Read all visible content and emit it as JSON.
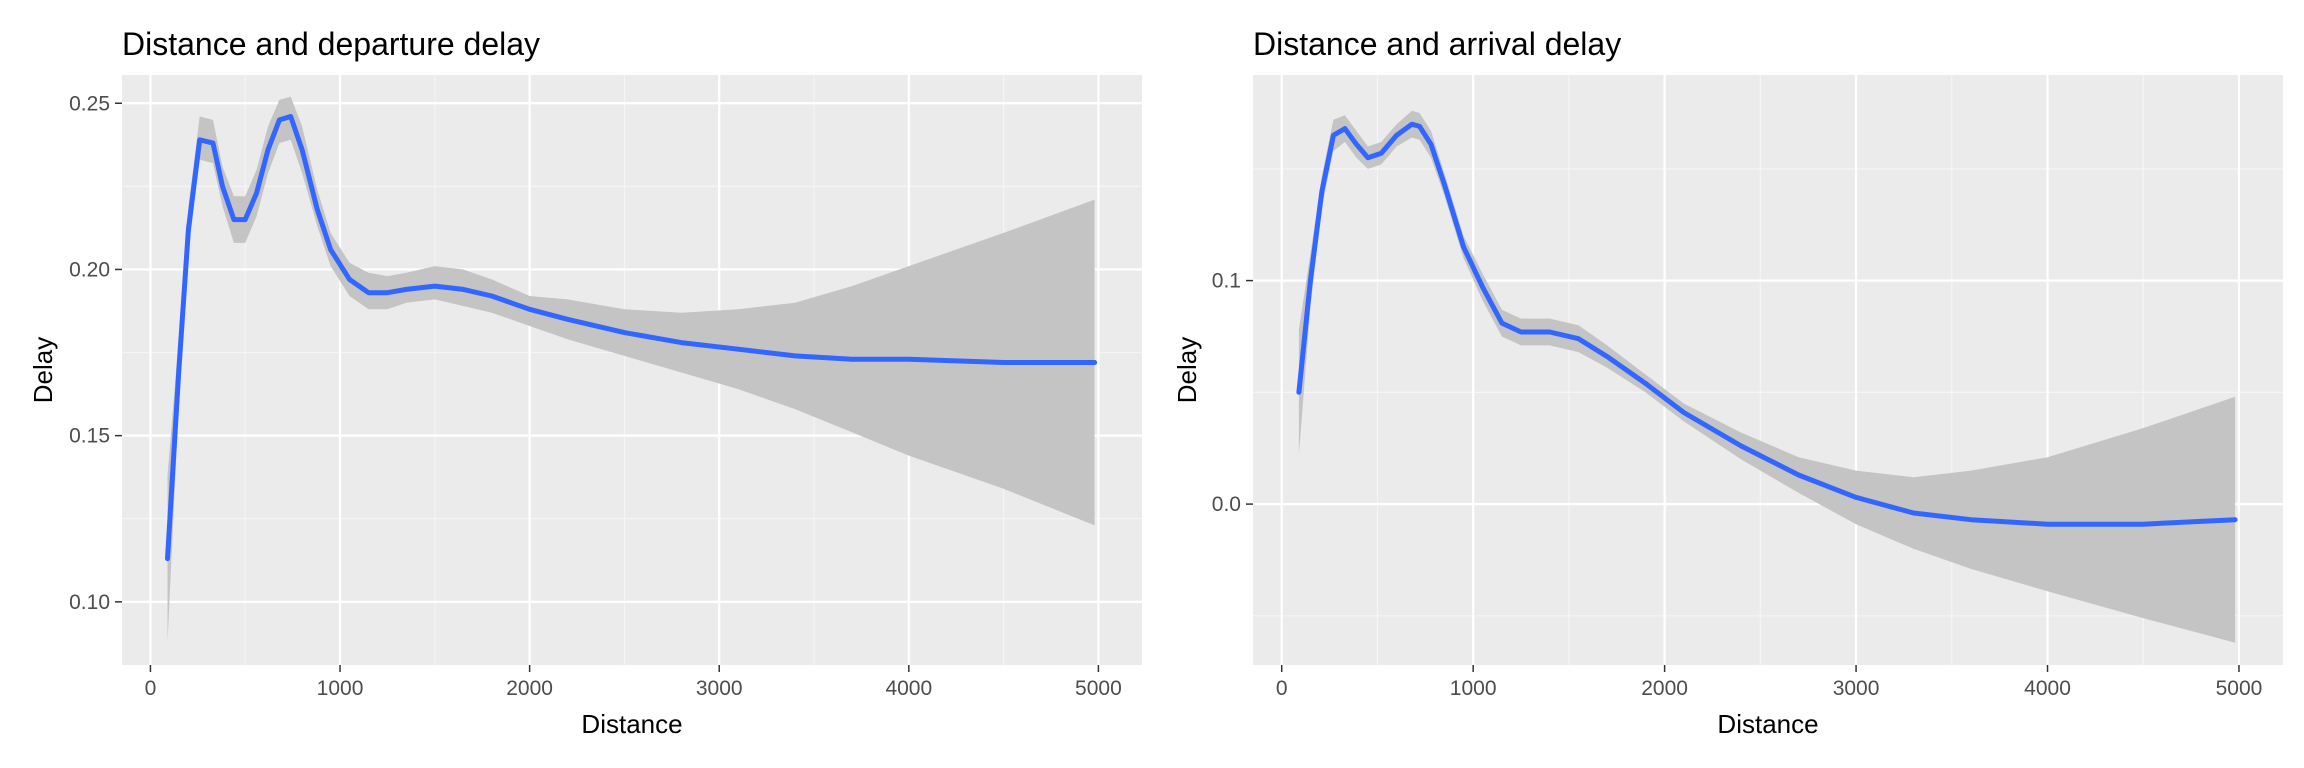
{
  "colors": {
    "panel_background": "#ebebeb",
    "grid_major": "#ffffff",
    "grid_minor": "#f5f5f5",
    "line": "#3366ff",
    "ribbon": "#c4c4c4",
    "tick_text": "#4d4d4d"
  },
  "chart_data": [
    {
      "type": "line",
      "title": "Distance and departure delay",
      "xlabel": "Distance",
      "ylabel": "Delay",
      "xlim": [
        -150,
        5230
      ],
      "ylim": [
        0.081,
        0.2585
      ],
      "x_ticks": [
        0,
        1000,
        2000,
        3000,
        4000,
        5000
      ],
      "x_tick_labels": [
        "0",
        "1000",
        "2000",
        "3000",
        "4000",
        "5000"
      ],
      "y_ticks": [
        0.1,
        0.15,
        0.2,
        0.25
      ],
      "y_tick_labels": [
        "0.10",
        "0.15",
        "0.20",
        "0.25"
      ],
      "grid": true,
      "legend": "none",
      "series": [
        {
          "smoother": "loess with confidence band",
          "x": [
            90,
            150,
            200,
            260,
            330,
            380,
            440,
            500,
            560,
            620,
            680,
            740,
            800,
            880,
            950,
            1050,
            1150,
            1250,
            1350,
            1500,
            1650,
            1800,
            2000,
            2200,
            2500,
            2800,
            3100,
            3400,
            3700,
            4000,
            4500,
            4980
          ],
          "y": [
            0.113,
            0.17,
            0.212,
            0.239,
            0.238,
            0.225,
            0.215,
            0.215,
            0.223,
            0.236,
            0.245,
            0.246,
            0.236,
            0.218,
            0.206,
            0.197,
            0.193,
            0.193,
            0.194,
            0.195,
            0.194,
            0.192,
            0.188,
            0.185,
            0.181,
            0.178,
            0.176,
            0.174,
            0.173,
            0.173,
            0.172,
            0.172
          ],
          "lower": [
            0.088,
            0.16,
            0.205,
            0.233,
            0.232,
            0.219,
            0.208,
            0.208,
            0.216,
            0.229,
            0.238,
            0.239,
            0.229,
            0.213,
            0.201,
            0.192,
            0.188,
            0.188,
            0.19,
            0.191,
            0.189,
            0.187,
            0.183,
            0.179,
            0.174,
            0.169,
            0.164,
            0.158,
            0.151,
            0.144,
            0.134,
            0.123
          ],
          "upper": [
            0.138,
            0.18,
            0.219,
            0.246,
            0.245,
            0.231,
            0.222,
            0.222,
            0.23,
            0.243,
            0.251,
            0.252,
            0.243,
            0.224,
            0.211,
            0.202,
            0.199,
            0.198,
            0.199,
            0.201,
            0.2,
            0.197,
            0.192,
            0.191,
            0.188,
            0.187,
            0.188,
            0.19,
            0.195,
            0.201,
            0.211,
            0.221
          ]
        }
      ]
    },
    {
      "type": "line",
      "title": "Distance and arrival delay",
      "xlabel": "Distance",
      "ylabel": "Delay",
      "xlim": [
        -150,
        5230
      ],
      "ylim": [
        -0.072,
        0.192
      ],
      "x_ticks": [
        0,
        1000,
        2000,
        3000,
        4000,
        5000
      ],
      "x_tick_labels": [
        "0",
        "1000",
        "2000",
        "3000",
        "4000",
        "5000"
      ],
      "y_ticks": [
        0.0,
        0.1
      ],
      "y_tick_labels": [
        "0.0",
        "0.1"
      ],
      "grid": true,
      "legend": "none",
      "series": [
        {
          "smoother": "loess with confidence band",
          "x": [
            90,
            150,
            210,
            270,
            330,
            390,
            450,
            520,
            600,
            680,
            720,
            780,
            850,
            950,
            1050,
            1150,
            1250,
            1400,
            1550,
            1700,
            1900,
            2100,
            2400,
            2700,
            3000,
            3300,
            3600,
            4000,
            4500,
            4980
          ],
          "y": [
            0.05,
            0.1,
            0.14,
            0.165,
            0.168,
            0.161,
            0.155,
            0.157,
            0.165,
            0.17,
            0.169,
            0.161,
            0.143,
            0.115,
            0.097,
            0.081,
            0.077,
            0.077,
            0.074,
            0.066,
            0.054,
            0.041,
            0.026,
            0.013,
            0.003,
            -0.004,
            -0.007,
            -0.009,
            -0.009,
            -0.007
          ],
          "lower": [
            0.022,
            0.088,
            0.133,
            0.158,
            0.162,
            0.155,
            0.15,
            0.152,
            0.16,
            0.164,
            0.163,
            0.155,
            0.138,
            0.11,
            0.091,
            0.075,
            0.071,
            0.071,
            0.068,
            0.061,
            0.05,
            0.037,
            0.02,
            0.005,
            -0.009,
            -0.02,
            -0.029,
            -0.039,
            -0.051,
            -0.062
          ],
          "upper": [
            0.078,
            0.112,
            0.147,
            0.172,
            0.174,
            0.167,
            0.16,
            0.162,
            0.17,
            0.176,
            0.175,
            0.167,
            0.148,
            0.12,
            0.103,
            0.087,
            0.083,
            0.083,
            0.08,
            0.071,
            0.058,
            0.045,
            0.032,
            0.021,
            0.015,
            0.012,
            0.015,
            0.021,
            0.034,
            0.048
          ]
        }
      ]
    }
  ]
}
